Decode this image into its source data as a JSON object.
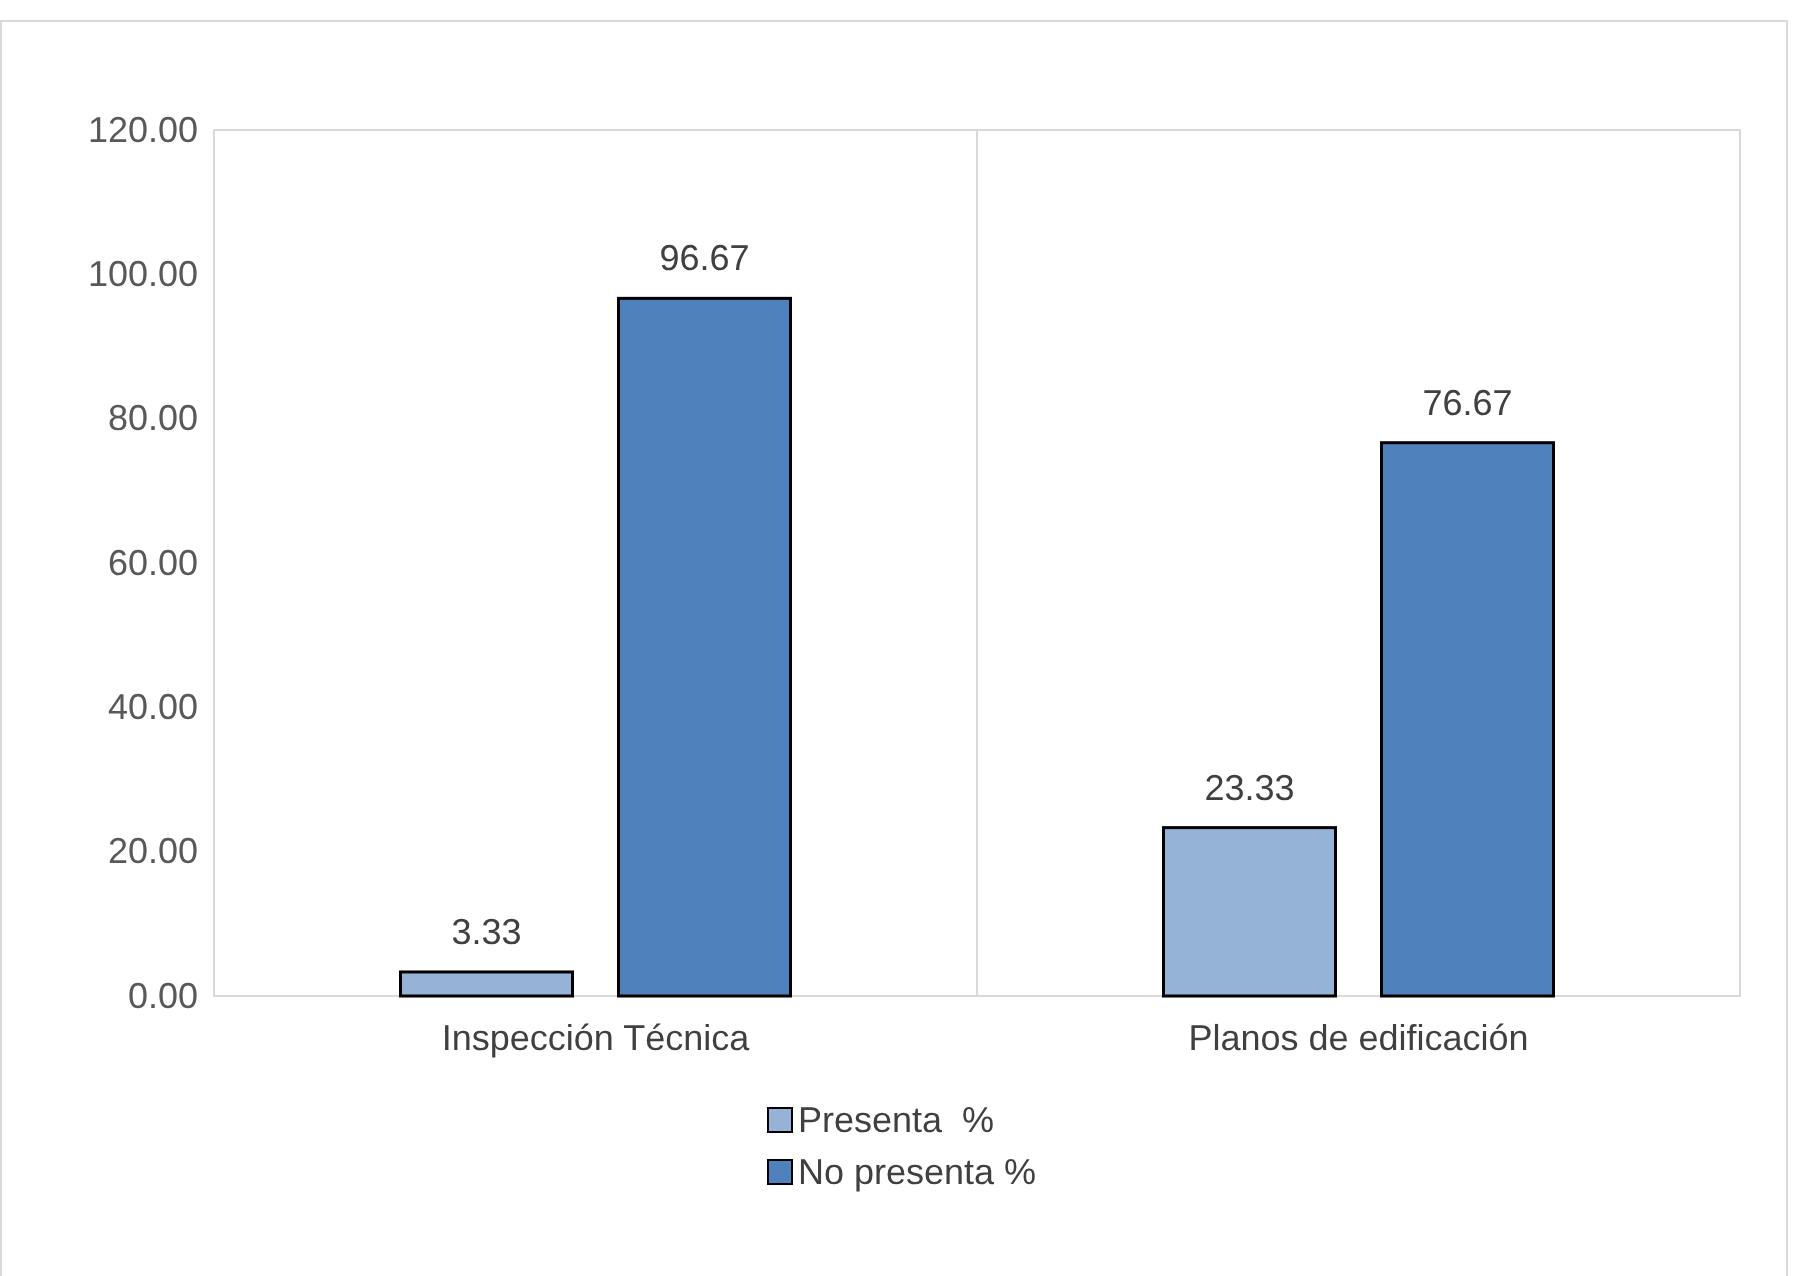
{
  "chart_data": {
    "type": "bar",
    "categories": [
      "Inspección Técnica",
      "Planos de edificación"
    ],
    "series": [
      {
        "name": "Presenta  %",
        "color": "#95b3d7",
        "values": [
          3.33,
          23.33
        ]
      },
      {
        "name": "No presenta %",
        "color": "#4f81bd",
        "values": [
          96.67,
          76.67
        ]
      }
    ],
    "ylim": [
      0,
      120
    ],
    "yticks": [
      {
        "value": 0,
        "label": "0.00"
      },
      {
        "value": 20,
        "label": "20.00"
      },
      {
        "value": 40,
        "label": "40.00"
      },
      {
        "value": 60,
        "label": "60.00"
      },
      {
        "value": 80,
        "label": "80.00"
      },
      {
        "value": 100,
        "label": "100.00"
      },
      {
        "value": 120,
        "label": "120.00"
      }
    ],
    "grid": "x",
    "legend": "bottom",
    "data_labels": true
  }
}
